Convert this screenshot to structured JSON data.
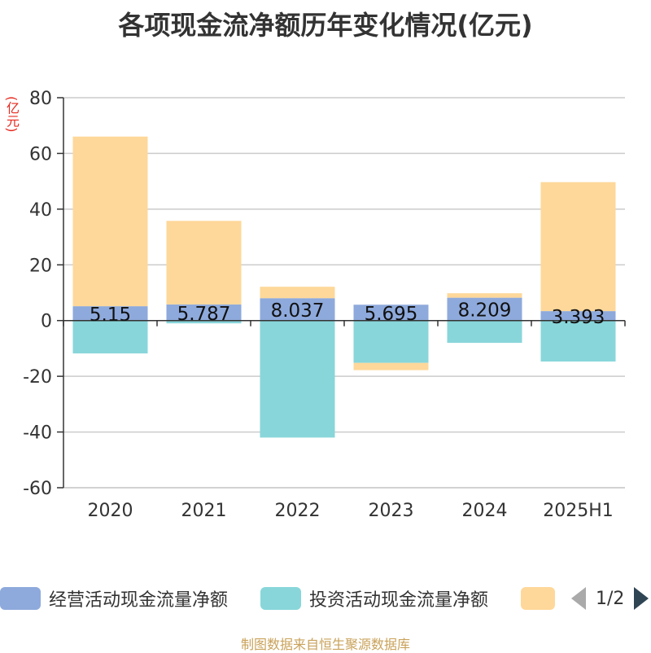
{
  "chart_data": {
    "type": "bar",
    "stacked": true,
    "title": "各项现金流净额历年变化情况(亿元)",
    "ylabel": "(亿元)",
    "categories": [
      "2020",
      "2021",
      "2022",
      "2023",
      "2024",
      "2025H1"
    ],
    "ylim": [
      -60,
      80
    ],
    "yticks": [
      80,
      60,
      40,
      20,
      0,
      -20,
      -40,
      -60
    ],
    "grid": true,
    "legend_position": "bottom",
    "series": [
      {
        "name": "经营活动现金流量净额",
        "color": "#8eaadc",
        "values": [
          5.15,
          5.787,
          8.037,
          5.695,
          8.209,
          3.393
        ]
      },
      {
        "name": "投资活动现金流量净额",
        "color": "#88d6da",
        "values": [
          -11.8,
          -1.0,
          -42.0,
          -15.2,
          -8.0,
          -14.7
        ]
      },
      {
        "color": "#fed89a",
        "values": [
          60.9,
          30.0,
          4.1,
          -2.6,
          1.6,
          46.3
        ]
      }
    ],
    "data_labels": [
      "5.15",
      "5.787",
      "8.037",
      "5.695",
      "8.209",
      "3.393"
    ]
  },
  "legend": {
    "items": [
      {
        "label": "经营活动现金流量净额",
        "color": "#8eaadc"
      },
      {
        "label": "投资活动现金流量净额",
        "color": "#88d6da"
      },
      {
        "label": "",
        "color": "#fed89a"
      }
    ],
    "page": "1/2"
  },
  "source": "制图数据来自恒生聚源数据库"
}
